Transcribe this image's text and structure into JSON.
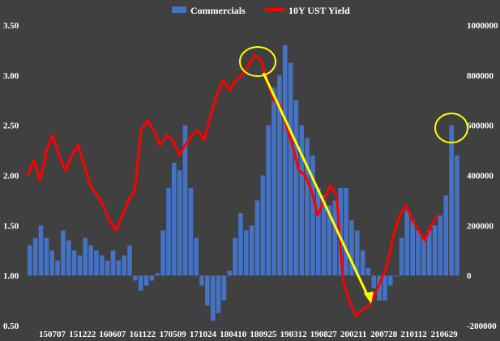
{
  "chart_data": {
    "type": "bar+line",
    "background": "#404040",
    "legend": {
      "position": "top",
      "items": [
        {
          "name": "Commercials",
          "color": "#4472c4",
          "kind": "bar"
        },
        {
          "name": "10Y UST Yield",
          "color": "#ff0000",
          "kind": "line"
        }
      ]
    },
    "y_left": {
      "range": [
        0.5,
        3.5
      ],
      "ticks": [
        "0.50",
        "1.00",
        "1.50",
        "2.00",
        "2.50",
        "3.00",
        "3.50"
      ]
    },
    "y_right": {
      "range": [
        -200000,
        1000000
      ],
      "ticks": [
        "-200000",
        "0",
        "200000",
        "400000",
        "600000",
        "800000",
        "1000000"
      ]
    },
    "x_tick_labels": [
      "150707",
      "151222",
      "160607",
      "161122",
      "170509",
      "171024",
      "180410",
      "180925",
      "190312",
      "190827",
      "200211",
      "200728",
      "210112",
      "210629"
    ],
    "series": [
      {
        "name": "Commercials",
        "axis": "right",
        "color": "#4472c4",
        "values": [
          120000,
          150000,
          200000,
          150000,
          100000,
          60000,
          180000,
          140000,
          100000,
          80000,
          150000,
          120000,
          100000,
          80000,
          60000,
          100000,
          60000,
          80000,
          120000,
          -20000,
          -60000,
          -40000,
          -20000,
          10000,
          180000,
          350000,
          450000,
          420000,
          600000,
          350000,
          150000,
          -40000,
          -120000,
          -180000,
          -150000,
          -100000,
          20000,
          150000,
          250000,
          180000,
          200000,
          300000,
          400000,
          600000,
          750000,
          800000,
          920000,
          850000,
          700000,
          600000,
          550000,
          480000,
          350000,
          320000,
          280000,
          300000,
          350000,
          350000,
          220000,
          180000,
          100000,
          30000,
          -50000,
          -100000,
          -100000,
          -40000,
          0,
          150000,
          260000,
          220000,
          180000,
          150000,
          180000,
          200000,
          240000,
          320000,
          600000,
          480000
        ]
      },
      {
        "name": "10Y UST Yield",
        "axis": "left",
        "color": "#ff0000",
        "values": [
          2.0,
          2.15,
          1.95,
          2.25,
          2.4,
          2.2,
          2.05,
          2.2,
          2.3,
          2.1,
          1.9,
          1.8,
          1.7,
          1.55,
          1.45,
          1.6,
          1.75,
          1.85,
          2.45,
          2.55,
          2.45,
          2.3,
          2.4,
          2.35,
          2.2,
          2.3,
          2.4,
          2.45,
          2.35,
          2.6,
          2.8,
          2.95,
          2.85,
          2.95,
          3.0,
          3.1,
          3.2,
          3.15,
          2.95,
          2.75,
          2.7,
          2.5,
          2.3,
          2.05,
          2.0,
          1.85,
          1.6,
          1.75,
          1.9,
          1.8,
          0.95,
          0.75,
          0.6,
          0.65,
          0.7,
          0.8,
          0.95,
          1.1,
          1.4,
          1.6,
          1.7,
          1.55,
          1.45,
          1.35,
          1.5,
          1.6
        ]
      }
    ]
  },
  "annotations": {
    "circle_color": "#ffff00",
    "arrow_color": "#ffff00"
  }
}
